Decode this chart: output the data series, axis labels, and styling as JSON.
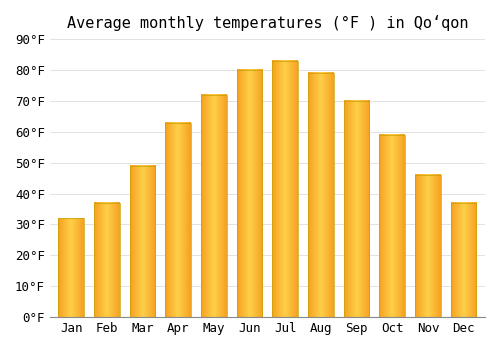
{
  "title": "Average monthly temperatures (°F ) in Qoʻqon",
  "months": [
    "Jan",
    "Feb",
    "Mar",
    "Apr",
    "May",
    "Jun",
    "Jul",
    "Aug",
    "Sep",
    "Oct",
    "Nov",
    "Dec"
  ],
  "values": [
    32,
    37,
    49,
    63,
    72,
    80,
    83,
    79,
    70,
    59,
    46,
    37
  ],
  "ylim": [
    0,
    90
  ],
  "yticks": [
    0,
    10,
    20,
    30,
    40,
    50,
    60,
    70,
    80,
    90
  ],
  "ytick_labels": [
    "0°F",
    "10°F",
    "20°F",
    "30°F",
    "40°F",
    "50°F",
    "60°F",
    "70°F",
    "80°F",
    "90°F"
  ],
  "bar_color_left": "#F5A623",
  "bar_color_center": "#FFD04A",
  "bar_color_right": "#F5A020",
  "bar_edge_color": "#C8A000",
  "background_color": "#FFFFFF",
  "plot_bg_color": "#FFFFFF",
  "grid_color": "#DDDDDD",
  "title_fontsize": 11,
  "tick_fontsize": 9,
  "bar_width": 0.72
}
